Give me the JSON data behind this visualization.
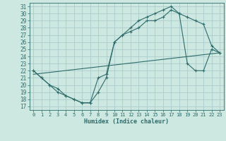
{
  "xlabel": "Humidex (Indice chaleur)",
  "bg_color": "#cce8e0",
  "grid_color": "#aacccc",
  "line_color": "#2e6b6b",
  "xlim": [
    -0.5,
    23.5
  ],
  "ylim": [
    16.5,
    31.5
  ],
  "xticks": [
    0,
    1,
    2,
    3,
    4,
    5,
    6,
    7,
    8,
    9,
    10,
    11,
    12,
    13,
    14,
    15,
    16,
    17,
    18,
    19,
    20,
    21,
    22,
    23
  ],
  "yticks": [
    17,
    18,
    19,
    20,
    21,
    22,
    23,
    24,
    25,
    26,
    27,
    28,
    29,
    30,
    31
  ],
  "line1_x": [
    0,
    1,
    2,
    3,
    4,
    5,
    6,
    7,
    8,
    9,
    10,
    11,
    12,
    13,
    14,
    15,
    16,
    17,
    18,
    19,
    20,
    21,
    22,
    23
  ],
  "line1_y": [
    22,
    21,
    20,
    19,
    18.5,
    18,
    17.5,
    17.5,
    19,
    21,
    26,
    27,
    27.5,
    28,
    29,
    29,
    29.5,
    30.5,
    30,
    29.5,
    29,
    28.5,
    25.5,
    24.5
  ],
  "line2_x": [
    0,
    1,
    2,
    3,
    4,
    5,
    6,
    7,
    8,
    9,
    10,
    11,
    12,
    13,
    14,
    15,
    16,
    17,
    18,
    19,
    20,
    21,
    22,
    23
  ],
  "line2_y": [
    22,
    21,
    20,
    19.5,
    18.5,
    18,
    17.5,
    17.5,
    21,
    21.5,
    26,
    27,
    28,
    29,
    29.5,
    30,
    30.5,
    31,
    30,
    23,
    22,
    22,
    25,
    24.5
  ],
  "line3_x": [
    0,
    23
  ],
  "line3_y": [
    21.5,
    24.5
  ]
}
